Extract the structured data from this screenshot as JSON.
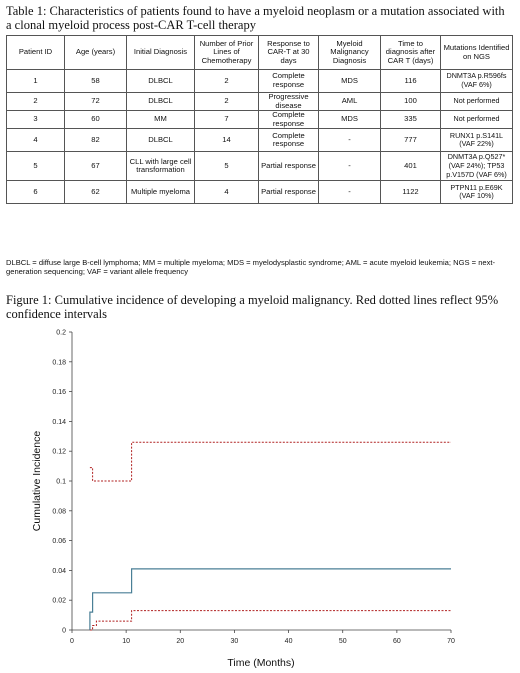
{
  "table": {
    "caption": "Table 1: Characteristics of patients found to have a myeloid neoplasm or a mutation associated with a clonal myeloid process post-CAR T-cell therapy",
    "headers": [
      "Patient ID",
      "Age (years)",
      "Initial Diagnosis",
      "Number of Prior Lines of Chemotherapy",
      "Response to CAR-T at 30 days",
      "Myeloid Malignancy Diagnosis",
      "Time to diagnosis after CAR T (days)",
      "Mutations Identified on NGS"
    ],
    "rows": [
      [
        "1",
        "58",
        "DLBCL",
        "2",
        "Complete response",
        "MDS",
        "116",
        "DNMT3A p.R596fs (VAF 6%)"
      ],
      [
        "2",
        "72",
        "DLBCL",
        "2",
        "Progressive disease",
        "AML",
        "100",
        "Not performed"
      ],
      [
        "3",
        "60",
        "MM",
        "7",
        "Complete response",
        "MDS",
        "335",
        "Not performed"
      ],
      [
        "4",
        "82",
        "DLBCL",
        "14",
        "Complete response",
        "-",
        "777",
        "RUNX1 p.S141L (VAF 22%)"
      ],
      [
        "5",
        "67",
        "CLL with large cell transformation",
        "5",
        "Partial response",
        "-",
        "401",
        "DNMT3A p.Q527* (VAF 24%); TP53 p.V157D (VAF 6%)"
      ],
      [
        "6",
        "62",
        "Multiple myeloma",
        "4",
        "Partial response",
        "-",
        "1122",
        "PTPN11 p.E69K (VAF 10%)"
      ]
    ],
    "abbreviations": "DLBCL = diffuse large B-cell lymphoma; MM = multiple myeloma; MDS = myelodysplastic syndrome; AML = acute myeloid leukemia; NGS = next-generation sequencing; VAF = variant allele frequency"
  },
  "figure": {
    "caption": "Figure 1: Cumulative incidence of developing a myeloid malignancy. Red dotted lines reflect 95% confidence intervals"
  },
  "chart_data": {
    "type": "line",
    "title": "",
    "xlabel": "Time (Months)",
    "ylabel": "Cumulative Incidence",
    "xlim": [
      0,
      70
    ],
    "ylim": [
      0,
      0.2
    ],
    "xticks": [
      0,
      10,
      20,
      30,
      40,
      50,
      60,
      70
    ],
    "yticks": [
      0,
      0.02,
      0.04,
      0.06,
      0.08,
      0.1,
      0.12,
      0.14,
      0.16,
      0.18,
      0.2
    ],
    "grid": false,
    "legend": "none",
    "series": [
      {
        "role": "estimate",
        "color": "#4a7f96",
        "style": "solid",
        "step": true,
        "x": [
          3.3,
          3.3,
          3.8,
          3.8,
          11,
          11,
          70
        ],
        "y": [
          0,
          0.012,
          0.012,
          0.025,
          0.025,
          0.041,
          0.041
        ]
      },
      {
        "role": "upper-ci",
        "color": "#b02020",
        "style": "dotted",
        "step": true,
        "x": [
          3.3,
          3.8,
          3.8,
          11,
          11,
          70
        ],
        "y": [
          0.109,
          0.109,
          0.1,
          0.1,
          0.126,
          0.126
        ]
      },
      {
        "role": "lower-ci",
        "color": "#b02020",
        "style": "dotted",
        "step": true,
        "x": [
          3.3,
          3.8,
          3.8,
          4.5,
          4.5,
          11,
          11,
          70
        ],
        "y": [
          0.0,
          0.0,
          0.003,
          0.003,
          0.006,
          0.006,
          0.013,
          0.013
        ]
      }
    ]
  }
}
